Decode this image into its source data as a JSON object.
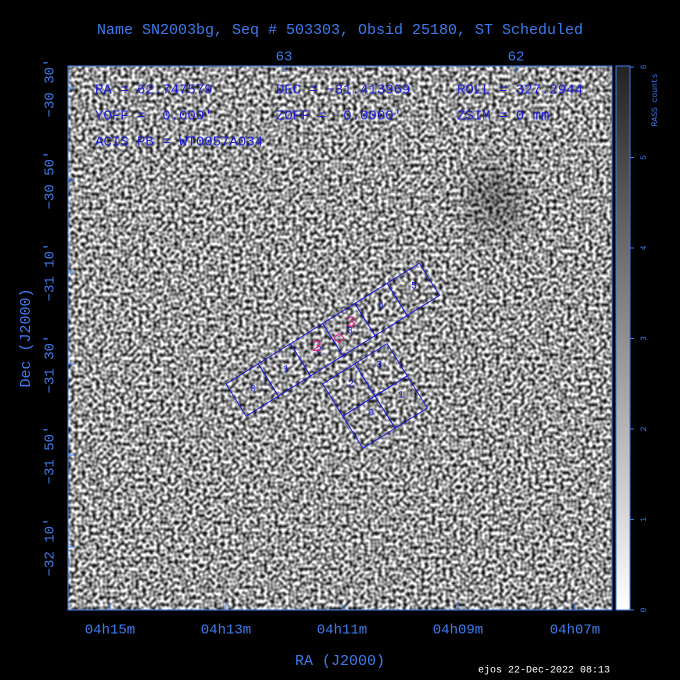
{
  "title": "Name SN2003bg, Seq # 503303, Obsid 25180, ST Scheduled",
  "top_axis": {
    "ticks": [
      "63",
      "62"
    ]
  },
  "left_axis": {
    "label": "Dec (J2000)",
    "ticks": [
      "−30 30'",
      "−30 50'",
      "−31 10'",
      "−31 30'",
      "−31 50'",
      "−32 10'"
    ]
  },
  "bottom_axis": {
    "label": "RA (J2000)",
    "ticks": [
      "04h15m",
      "04h13m",
      "04h11m",
      "04h09m",
      "04h07m"
    ]
  },
  "colorbar": {
    "label": "RASS counts",
    "ticks": [
      "0",
      "1",
      "2",
      "3",
      "4",
      "5",
      "6"
    ]
  },
  "info": [
    [
      "RA = 62.747579",
      "DEC = −31.413969",
      "ROLL = 327.2944"
    ],
    [
      "YOFF =  0.000'",
      "ZOFF =  0.0000'",
      "ZSIM = 0 mm"
    ],
    [
      "ACIS PB = WT0057A034"
    ]
  ],
  "strip_chips": [
    "0",
    "1",
    "2",
    "3",
    "4",
    "5"
  ],
  "square_chips": [
    "2",
    "3",
    "0",
    "1"
  ],
  "aimpoints": [
    "2",
    "3"
  ],
  "footer": "ejos 22-Dec-2022 08:13"
}
